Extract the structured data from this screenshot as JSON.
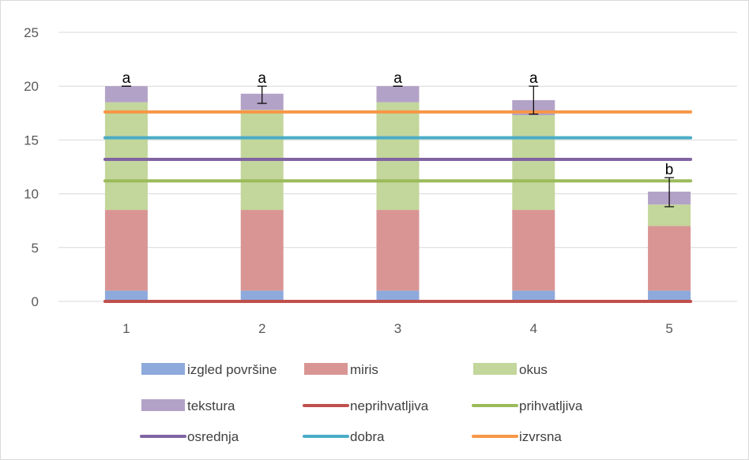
{
  "chart_data": {
    "type": "bar",
    "stacked": true,
    "categories": [
      "1",
      "2",
      "3",
      "4",
      "5"
    ],
    "ylim": [
      0,
      25
    ],
    "yticks": [
      "0",
      "5",
      "10",
      "15",
      "20",
      "25"
    ],
    "grid": true,
    "legend_position": "bottom",
    "bar_series": [
      {
        "name": "izgled površine",
        "color": "#8EA9DB",
        "values": [
          1,
          1,
          1,
          1,
          1
        ]
      },
      {
        "name": "miris",
        "color": "#D99594",
        "values": [
          7.5,
          7.5,
          7.5,
          7.5,
          6
        ]
      },
      {
        "name": "okus",
        "color": "#C3D69B",
        "values": [
          10,
          9.3,
          10,
          8.8,
          2
        ]
      },
      {
        "name": "tekstura",
        "color": "#B3A2C7",
        "values": [
          1.5,
          1.5,
          1.5,
          1.4,
          1.2
        ]
      }
    ],
    "line_series": [
      {
        "name": "neprihvatljiva",
        "color": "#C0504D",
        "value": 0
      },
      {
        "name": "prihvatljiva",
        "color": "#9BBB59",
        "value": 11.2
      },
      {
        "name": "osrednja",
        "color": "#8064A2",
        "value": 13.2
      },
      {
        "name": "dobra",
        "color": "#4BACC6",
        "value": 15.2
      },
      {
        "name": "izvrsna",
        "color": "#F79646",
        "value": 17.6
      }
    ],
    "error_bars": [
      {
        "low": 20,
        "high": 20
      },
      {
        "low": 18.4,
        "high": 20
      },
      {
        "low": 20,
        "high": 20
      },
      {
        "low": 17.4,
        "high": 20
      },
      {
        "low": 8.8,
        "high": 11.5
      }
    ],
    "annotations": [
      "a",
      "a",
      "a",
      "a",
      "b"
    ]
  }
}
